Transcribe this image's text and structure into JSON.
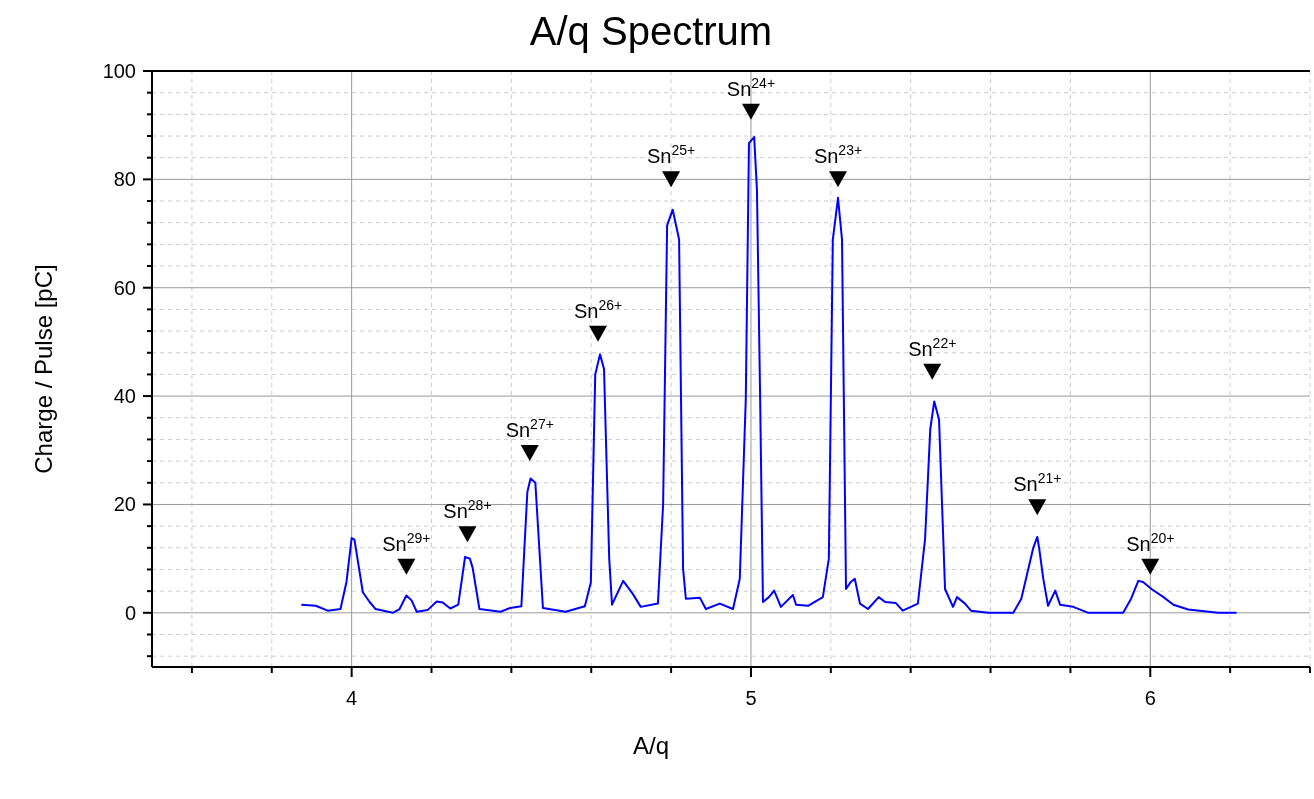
{
  "chart_data": {
    "type": "line",
    "title": "A/q Spectrum",
    "xlabel": "A/q",
    "ylabel": "Charge / Pulse [pC]",
    "xlim": [
      3.5,
      6.4
    ],
    "ylim": [
      -10,
      100
    ],
    "xticks": [
      {
        "value": 3.6,
        "label": null
      },
      {
        "value": 3.8,
        "label": null
      },
      4,
      {
        "value": 4.2,
        "label": null
      },
      {
        "value": 4.4,
        "label": null
      },
      {
        "value": 4.6,
        "label": null
      },
      {
        "value": 4.8,
        "label": null
      },
      5,
      {
        "value": 5.2,
        "label": null
      },
      {
        "value": 5.4,
        "label": null
      },
      {
        "value": 5.6,
        "label": null
      },
      {
        "value": 5.8,
        "label": null
      },
      6,
      {
        "value": 6.2,
        "label": null
      },
      {
        "value": 6.4,
        "label": null
      }
    ],
    "yticks": [
      {
        "value": -8,
        "label": null
      },
      {
        "value": -4,
        "label": null
      },
      0,
      {
        "value": 4,
        "label": null
      },
      {
        "value": 8,
        "label": null
      },
      {
        "value": 12,
        "label": null
      },
      {
        "value": 16,
        "label": null
      },
      20,
      {
        "value": 24,
        "label": null
      },
      {
        "value": 28,
        "label": null
      },
      {
        "value": 32,
        "label": null
      },
      {
        "value": 36,
        "label": null
      },
      40,
      {
        "value": 44,
        "label": null
      },
      {
        "value": 48,
        "label": null
      },
      {
        "value": 52,
        "label": null
      },
      {
        "value": 56,
        "label": null
      },
      60,
      {
        "value": 64,
        "label": null
      },
      {
        "value": 68,
        "label": null
      },
      {
        "value": 72,
        "label": null
      },
      {
        "value": 76,
        "label": null
      },
      80,
      {
        "value": 84,
        "label": null
      },
      {
        "value": 88,
        "label": null
      },
      {
        "value": 92,
        "label": null
      },
      {
        "value": 96,
        "label": null
      },
      100
    ],
    "grid": true,
    "marker": "none",
    "line_style": "solid",
    "series": [
      {
        "color": "#0000ff",
        "x": [
          3.874,
          3.91,
          3.94,
          3.972,
          3.987,
          4.0,
          4.007,
          4.028,
          4.045,
          4.06,
          4.103,
          4.12,
          4.137,
          4.15,
          4.163,
          4.19,
          4.213,
          4.228,
          4.247,
          4.267,
          4.284,
          4.296,
          4.303,
          4.32,
          4.373,
          4.397,
          4.425,
          4.44,
          4.448,
          4.46,
          4.479,
          4.536,
          4.584,
          4.599,
          4.61,
          4.622,
          4.632,
          4.645,
          4.652,
          4.68,
          4.704,
          4.724,
          4.767,
          4.78,
          4.79,
          4.804,
          4.82,
          4.83,
          4.837,
          4.872,
          4.887,
          4.922,
          4.955,
          4.972,
          4.987,
          4.995,
          5.008,
          5.015,
          5.023,
          5.03,
          5.045,
          5.058,
          5.075,
          5.105,
          5.113,
          5.143,
          5.18,
          5.195,
          5.205,
          5.218,
          5.228,
          5.238,
          5.25,
          5.26,
          5.273,
          5.293,
          5.32,
          5.336,
          5.363,
          5.38,
          5.418,
          5.436,
          5.449,
          5.459,
          5.471,
          5.486,
          5.506,
          5.516,
          5.536,
          5.551,
          5.594,
          5.657,
          5.677,
          5.707,
          5.717,
          5.722,
          5.732,
          5.744,
          5.762,
          5.774,
          5.807,
          5.845,
          5.932,
          5.952,
          5.97,
          5.982,
          6.003,
          6.033,
          6.058,
          6.095,
          6.17,
          6.216
        ],
        "values": [
          1.5,
          1.3,
          0.4,
          0.7,
          5.7,
          13.8,
          13.5,
          3.8,
          2.0,
          0.7,
          0.0,
          0.7,
          3.2,
          2.3,
          0.2,
          0.5,
          2.1,
          1.9,
          0.8,
          1.5,
          10.3,
          10.0,
          8.3,
          0.7,
          0.2,
          0.9,
          1.2,
          22.3,
          24.8,
          24.0,
          0.9,
          0.2,
          1.2,
          5.6,
          44,
          47.7,
          45,
          10,
          1.5,
          5.9,
          3.5,
          1.1,
          1.7,
          20,
          71.5,
          74.4,
          68.9,
          8.1,
          2.6,
          2.8,
          0.7,
          1.7,
          0.7,
          6.3,
          39.4,
          86.7,
          87.8,
          78.1,
          39.4,
          2.0,
          2.9,
          4.1,
          1.1,
          3.3,
          1.5,
          1.3,
          2.9,
          10,
          68.9,
          76.6,
          68.9,
          4.4,
          5.7,
          6.3,
          1.7,
          0.7,
          2.9,
          2.0,
          1.8,
          0.4,
          1.7,
          13.6,
          33.9,
          39.0,
          35.7,
          4.4,
          1.1,
          2.9,
          1.7,
          0.4,
          0,
          0,
          2.6,
          12,
          14,
          11.8,
          6.3,
          1.3,
          4.1,
          1.5,
          1.1,
          0,
          0,
          2.6,
          5.9,
          5.7,
          4.4,
          2.9,
          1.5,
          0.6,
          0,
          0
        ]
      }
    ],
    "annotations": [
      {
        "text": "Sn$^{29+}$",
        "x": 4.137,
        "y": 8.5
      },
      {
        "text": "Sn$^{28+}$",
        "x": 4.29,
        "y": 14.5
      },
      {
        "text": "Sn$^{27+}$",
        "x": 4.446,
        "y": 29.5
      },
      {
        "text": "Sn$^{26+}$",
        "x": 4.617,
        "y": 51.5
      },
      {
        "text": "Sn$^{25+}$",
        "x": 4.8,
        "y": 80
      },
      {
        "text": "Sn$^{24+}$",
        "x": 5.0,
        "y": 92.5
      },
      {
        "text": "Sn$^{23+}$",
        "x": 5.218,
        "y": 80
      },
      {
        "text": "Sn$^{22+}$",
        "x": 5.454,
        "y": 44.5
      },
      {
        "text": "Sn$^{21+}$",
        "x": 5.717,
        "y": 19.5
      },
      {
        "text": "Sn$^{20+}$",
        "x": 6.0,
        "y": 8.5
      }
    ]
  }
}
